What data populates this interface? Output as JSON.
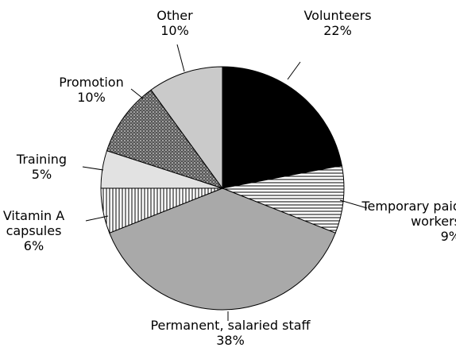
{
  "chart_data": {
    "type": "pie",
    "categories": [
      "Volunteers",
      "Temporary paid workers",
      "Permanent, salaried staff",
      "Vitamin A capsules",
      "Training",
      "Promotion",
      "Other"
    ],
    "values": [
      22,
      9,
      38,
      6,
      5,
      10,
      10
    ],
    "value_labels": [
      "22%",
      "9%",
      "38%",
      "6%",
      "5%",
      "10%",
      "10%"
    ],
    "colors": [
      "#000000",
      "#ffffff",
      "#a9a9a9",
      "#ffffff",
      "#e2e2e2",
      "#7a7a7a",
      "#cacaca"
    ],
    "patterns": [
      null,
      "horizontal",
      null,
      "vertical",
      null,
      "dots",
      null
    ]
  }
}
